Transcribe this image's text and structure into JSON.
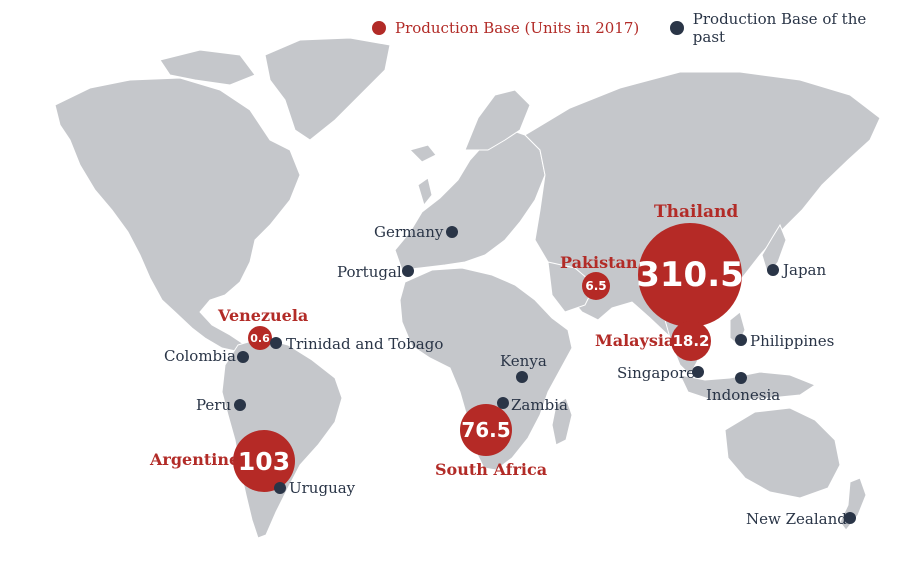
{
  "legend": {
    "current_label": "Production Base (Units in 2017)",
    "past_label": "Production Base of the past",
    "current_color": "#b22b27",
    "past_color": "#2a3547"
  },
  "current_bases": [
    {
      "name": "Thailand",
      "value": "310.5"
    },
    {
      "name": "Argentine",
      "value": "103"
    },
    {
      "name": "South Africa",
      "value": "76.5"
    },
    {
      "name": "Malaysia",
      "value": "18.2"
    },
    {
      "name": "Pakistan",
      "value": "6.5"
    },
    {
      "name": "Venezuela",
      "value": "0.6"
    }
  ],
  "past_bases": [
    {
      "name": "Germany"
    },
    {
      "name": "Portugal"
    },
    {
      "name": "Japan"
    },
    {
      "name": "Trinidad and Tobago"
    },
    {
      "name": "Colombia"
    },
    {
      "name": "Peru"
    },
    {
      "name": "Kenya"
    },
    {
      "name": "Zambia"
    },
    {
      "name": "Philippines"
    },
    {
      "name": "Singapore"
    },
    {
      "name": "Indonesia"
    },
    {
      "name": "Uruguay"
    },
    {
      "name": "New Zealand"
    }
  ]
}
